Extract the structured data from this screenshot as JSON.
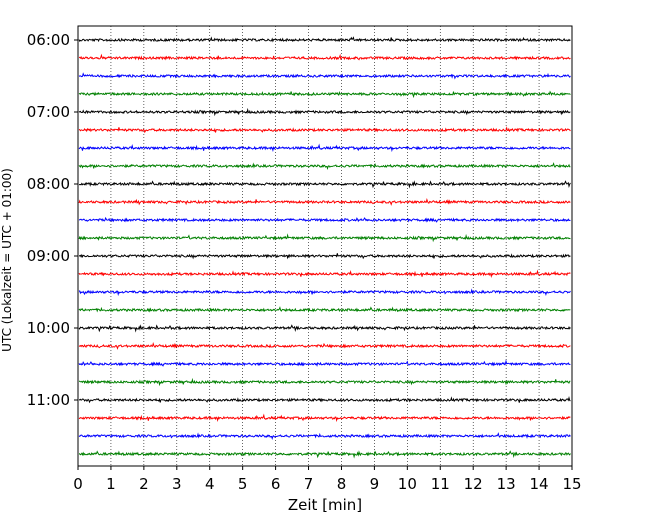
{
  "chart_data": {
    "type": "line",
    "xlabel": "Zeit  [min]",
    "ylabel": "UTC (Lokalzeit = UTC + 01:00)",
    "xlim": [
      0,
      15
    ],
    "x_ticks": [
      "0",
      "1",
      "2",
      "3",
      "4",
      "5",
      "6",
      "7",
      "8",
      "9",
      "10",
      "11",
      "12",
      "13",
      "14",
      "15"
    ],
    "y_ticks": [
      "06:00",
      "07:00",
      "08:00",
      "09:00",
      "10:00",
      "11:00"
    ],
    "grid": "vertical dotted",
    "trace_interval_min": 15,
    "trace_start": "06:00",
    "trace_count": 24,
    "trace_colors": [
      "#000000",
      "#ff0000",
      "#0000ff",
      "#008000"
    ]
  }
}
